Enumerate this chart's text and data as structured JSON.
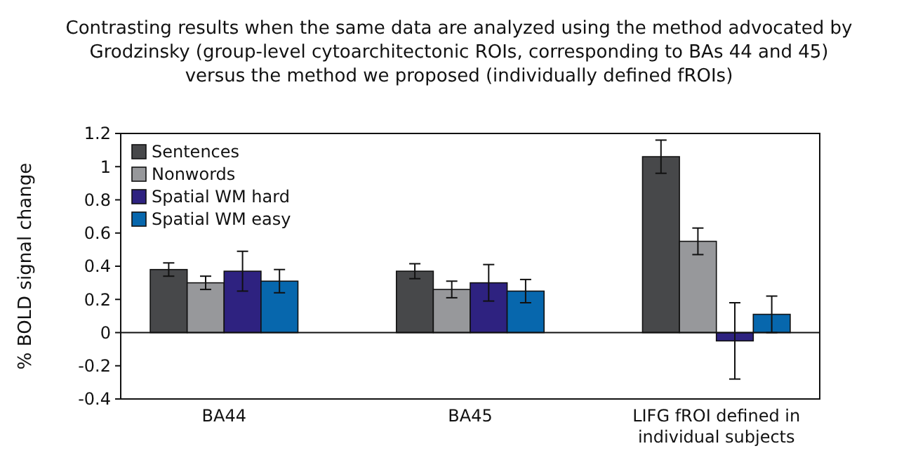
{
  "chart_data": {
    "type": "bar",
    "title": "Contrasting results when the same data are analyzed using the method advocated by Grodzinsky (group-level cytoarchitectonic ROIs, corresponding to BAs 44 and 45) versus the method we proposed (individually defined fROIs)",
    "ylabel": "% BOLD signal change",
    "categories": [
      "BA44",
      "BA45",
      "LIFG fROI defined in individual subjects"
    ],
    "series": [
      {
        "name": "Sentences",
        "color": "#47484a",
        "values": [
          0.38,
          0.37,
          1.06
        ],
        "errors": [
          0.04,
          0.045,
          0.1
        ]
      },
      {
        "name": "Nonwords",
        "color": "#97989b",
        "values": [
          0.3,
          0.26,
          0.55
        ],
        "errors": [
          0.04,
          0.05,
          0.08
        ]
      },
      {
        "name": "Spatial WM hard",
        "color": "#2e2280",
        "values": [
          0.37,
          0.3,
          -0.05
        ],
        "errors": [
          0.12,
          0.11,
          0.23
        ]
      },
      {
        "name": "Spatial WM easy",
        "color": "#0767ad",
        "values": [
          0.31,
          0.25,
          0.11
        ],
        "errors": [
          0.07,
          0.07,
          0.11
        ]
      }
    ],
    "ylim": [
      -0.4,
      1.2
    ],
    "yticks": [
      -0.4,
      -0.2,
      0,
      0.2,
      0.4,
      0.6,
      0.8,
      1,
      1.2
    ],
    "legend": "top left"
  }
}
